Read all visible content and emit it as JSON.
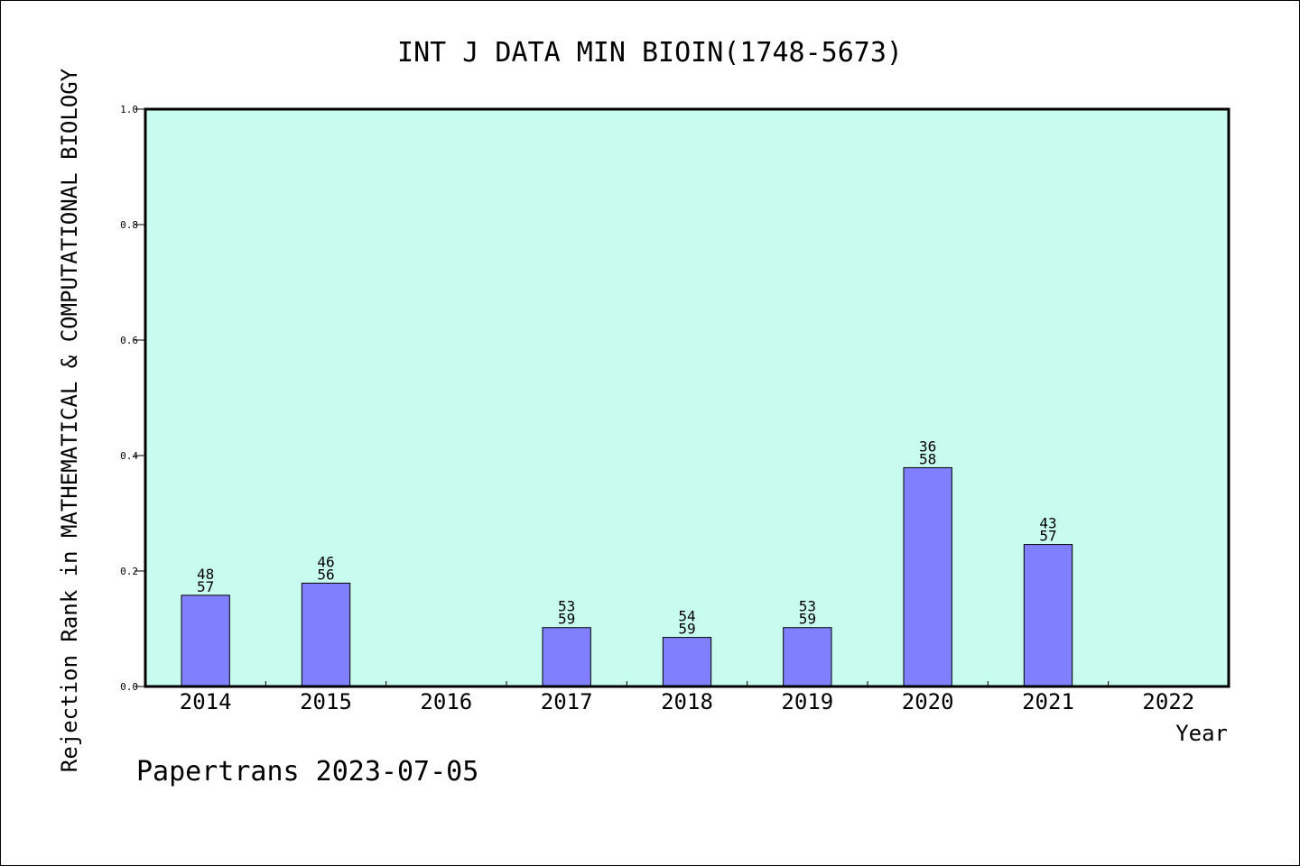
{
  "chart_data": {
    "type": "bar",
    "title": "INT J DATA MIN BIOIN(1748-5673)",
    "xlabel": "Year",
    "ylabel": "Rejection Rank in MATHEMATICAL & COMPUTATIONAL BIOLOGY",
    "footer": "Papertrans 2023-07-05",
    "ylim": [
      0,
      1.0
    ],
    "yticks": [
      "0.0",
      "0.2",
      "0.4",
      "0.6",
      "0.8",
      "1.0"
    ],
    "categories": [
      "2014",
      "2015",
      "2016",
      "2017",
      "2018",
      "2019",
      "2020",
      "2021",
      "2022"
    ],
    "values": [
      0.158,
      0.179,
      null,
      0.102,
      0.085,
      0.102,
      0.379,
      0.246,
      null
    ],
    "labels": [
      [
        "48",
        "57"
      ],
      [
        "46",
        "56"
      ],
      null,
      [
        "53",
        "59"
      ],
      [
        "54",
        "59"
      ],
      [
        "53",
        "59"
      ],
      [
        "36",
        "58"
      ],
      [
        "43",
        "57"
      ],
      null
    ],
    "colors": {
      "plot_background": "#c8fcee",
      "bar": "#8080ff",
      "bar_border": "#000000"
    },
    "grid": false
  }
}
